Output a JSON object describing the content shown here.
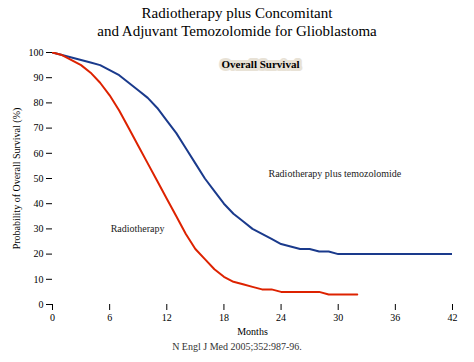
{
  "chart_data": {
    "type": "line",
    "title": "Radiotherapy plus Concomitant",
    "subtitle": "and Adjuvant Temozolomide for Glioblastoma",
    "caption": "N Engl J Med 2005;352:987-96.",
    "xlabel": "Months",
    "ylabel": "Probability of Overall Survival (%)",
    "annotations": [
      "Overall Survival"
    ],
    "series": [
      {
        "name": "Radiotherapy plus temozolomide",
        "color": "#1a3a8c",
        "x": [
          0,
          0.5,
          1,
          2,
          3,
          4,
          5,
          6,
          7,
          8,
          9,
          10,
          11,
          12,
          13,
          14,
          15,
          16,
          17,
          18,
          19,
          20,
          21,
          22,
          23,
          24,
          25,
          26,
          27,
          28,
          29,
          30,
          31,
          32,
          33,
          34,
          35,
          36,
          37,
          38,
          39,
          40,
          41,
          42
        ],
        "values": [
          100,
          99.5,
          99,
          98,
          97,
          96,
          95,
          93,
          91,
          88,
          85,
          82,
          78,
          73,
          68,
          62,
          56,
          50,
          45,
          40,
          36,
          33,
          30,
          28,
          26,
          24,
          23,
          22,
          22,
          21,
          21,
          20,
          20,
          20,
          20,
          20,
          20,
          20,
          20,
          20,
          20,
          20,
          20,
          20
        ]
      },
      {
        "name": "Radiotherapy",
        "color": "#dd2200",
        "x": [
          0,
          0.5,
          1,
          2,
          3,
          4,
          5,
          6,
          7,
          8,
          9,
          10,
          11,
          12,
          13,
          14,
          15,
          16,
          17,
          18,
          19,
          20,
          21,
          22,
          23,
          24,
          25,
          26,
          27,
          28,
          29,
          30,
          31,
          32
        ],
        "values": [
          100,
          99.5,
          99,
          97,
          95,
          92,
          88,
          83,
          77,
          70,
          63,
          56,
          49,
          42,
          35,
          28,
          22,
          18,
          14,
          11,
          9,
          8,
          7,
          6,
          6,
          5,
          5,
          5,
          5,
          5,
          4,
          4,
          4,
          4
        ]
      }
    ],
    "xlim": [
      0,
      42
    ],
    "ylim": [
      0,
      100
    ],
    "xticks": [
      0,
      6,
      12,
      18,
      24,
      30,
      36,
      42
    ],
    "yticks": [
      0,
      10,
      20,
      30,
      40,
      50,
      60,
      70,
      80,
      90,
      100
    ],
    "grid": false
  }
}
